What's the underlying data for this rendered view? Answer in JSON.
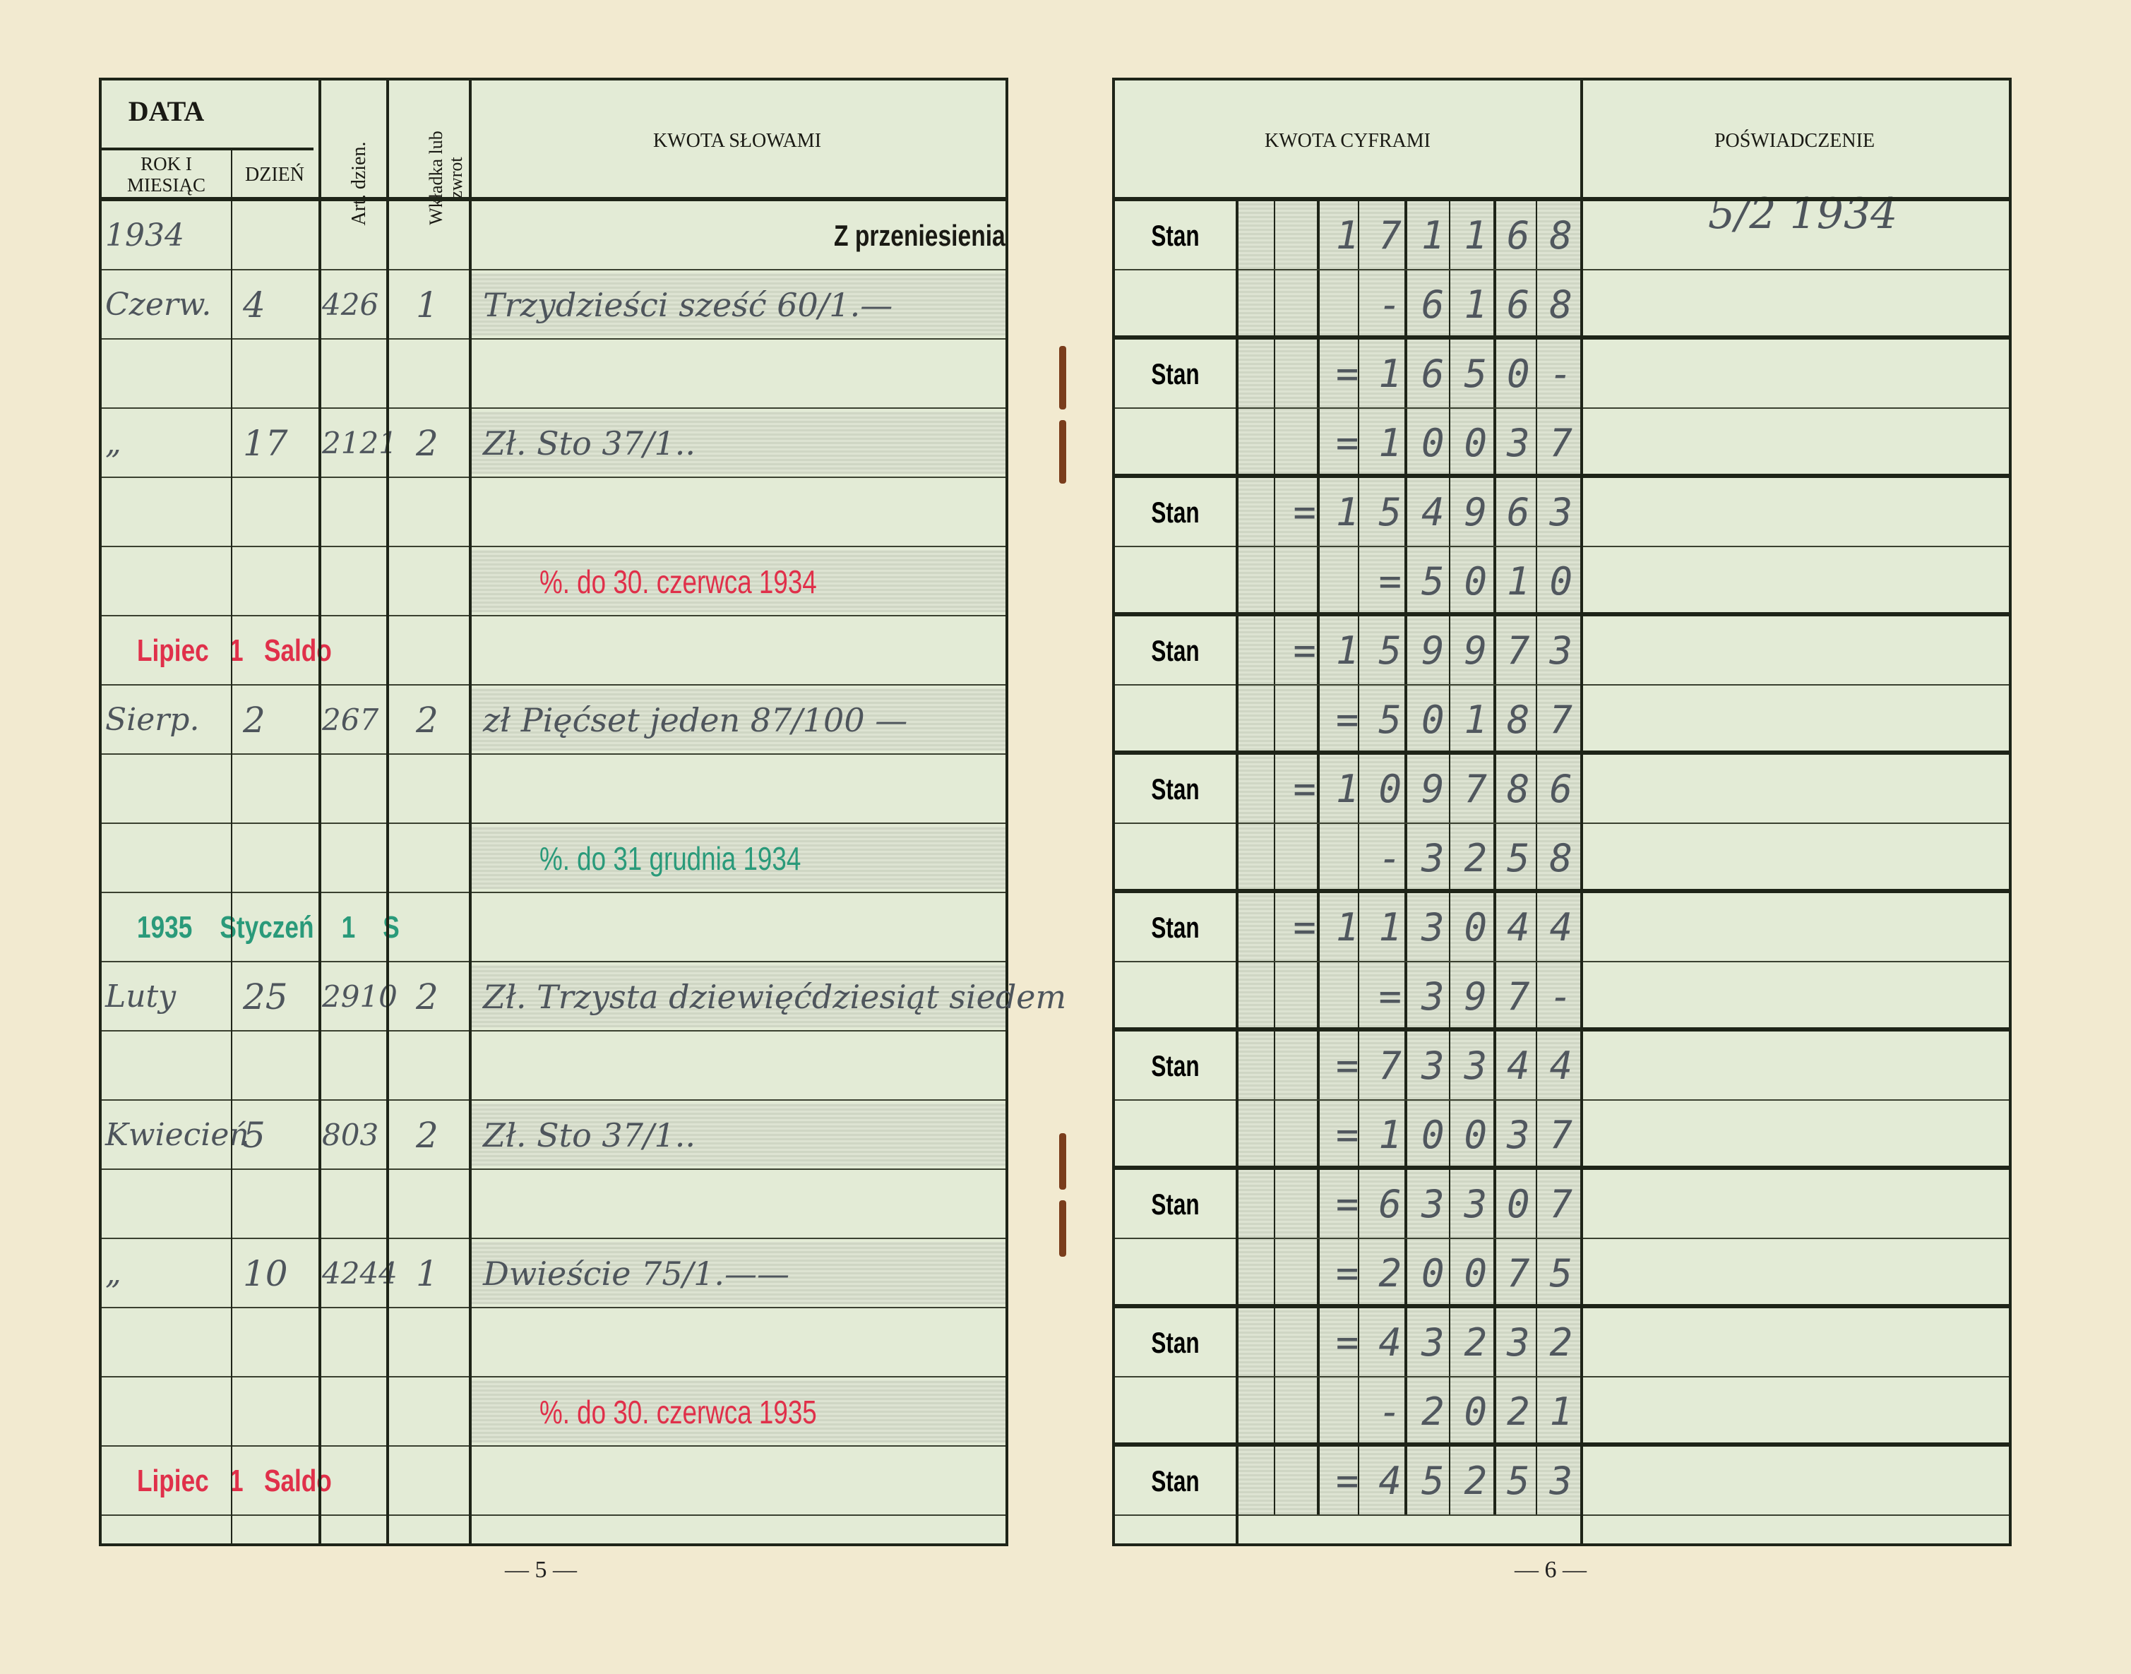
{
  "left_page": {
    "headers": {
      "data": "DATA",
      "rok_miesiac": "ROK I MIESIĄC",
      "dzien": "DZIEŃ",
      "art_dzien": "Art. dzien.",
      "wkladka": "Wkładka lub zwrot",
      "kwota_slowami": "KWOTA SŁOWAMI"
    },
    "rows": [
      {
        "month": "1934",
        "day": "",
        "art": "",
        "type": "",
        "words": "",
        "print": "Z przeniesienia"
      },
      {
        "month": "Czerw.",
        "day": "4",
        "art": "426",
        "type": "1",
        "words": "Trzydzieści sześć 60/1.—"
      },
      {
        "month": "",
        "day": "",
        "art": "",
        "type": "",
        "words": ""
      },
      {
        "month": "„",
        "day": "17",
        "art": "2121",
        "type": "2",
        "words": "Zł. Sto 37/1.."
      },
      {
        "month": "",
        "day": "",
        "art": "",
        "type": "",
        "words": ""
      },
      {
        "stamp": "%. do 30. czerwca 1934",
        "stamp_color": "#e0304a"
      },
      {
        "stamp_date": "Lipiec   1   Saldo",
        "stamp_color": "#e0304a"
      },
      {
        "month": "Sierp.",
        "day": "2",
        "art": "267",
        "type": "2",
        "words": "zł Pięćset jeden 87/100 —"
      },
      {
        "month": "",
        "day": "",
        "art": "",
        "type": "",
        "words": ""
      },
      {
        "stamp": "%. do 31 grudnia 1934",
        "stamp_color": "#2a9a7a"
      },
      {
        "stamp_date": "1935    Styczeń    1    S",
        "stamp_color": "#2a9a7a"
      },
      {
        "month": "Luty",
        "day": "25",
        "art": "2910",
        "type": "2",
        "words": "Zł. Trzysta dziewięćdziesiąt siedem"
      },
      {
        "month": "",
        "day": "",
        "art": "",
        "type": "",
        "words": ""
      },
      {
        "month": "Kwiecień",
        "day": "5",
        "art": "803",
        "type": "2",
        "words": "Zł. Sto 37/1.."
      },
      {
        "month": "",
        "day": "",
        "art": "",
        "type": "",
        "words": ""
      },
      {
        "month": "„",
        "day": "10",
        "art": "4244",
        "type": "1",
        "words": "Dwieście 75/1.——"
      },
      {
        "month": "",
        "day": "",
        "art": "",
        "type": "",
        "words": ""
      },
      {
        "stamp": "%. do 30. czerwca 1935",
        "stamp_color": "#e0304a"
      },
      {
        "stamp_date": "Lipiec   1   Saldo",
        "stamp_color": "#e0304a"
      }
    ],
    "page_number": "— 5 —"
  },
  "right_page": {
    "headers": {
      "kwota_cyframi": "KWOTA CYFRAMI",
      "poswiadczenie": "POŚWIADCZENIE"
    },
    "stan_label": "Stan",
    "attestation_date": "5/2 1934",
    "rows": [
      {
        "stan": true,
        "amount": "171168"
      },
      {
        "stan": false,
        "amount": "-6168"
      },
      {
        "stan": true,
        "amount": "=1650-"
      },
      {
        "stan": false,
        "amount": "=10037"
      },
      {
        "stan": true,
        "amount": "=154963"
      },
      {
        "stan": false,
        "amount": "=5010"
      },
      {
        "stan": true,
        "amount": "=159973"
      },
      {
        "stan": false,
        "amount": "=50187"
      },
      {
        "stan": true,
        "amount": "=109786"
      },
      {
        "stan": false,
        "amount": "-3258"
      },
      {
        "stan": true,
        "amount": "=113044"
      },
      {
        "stan": false,
        "amount": "=397-"
      },
      {
        "stan": true,
        "amount": "=73344"
      },
      {
        "stan": false,
        "amount": "=10037"
      },
      {
        "stan": true,
        "amount": "=63307"
      },
      {
        "stan": false,
        "amount": "=20075"
      },
      {
        "stan": true,
        "amount": "=43232"
      },
      {
        "stan": false,
        "amount": "-2021"
      },
      {
        "stan": true,
        "amount": "=45253"
      }
    ],
    "page_number": "— 6 —"
  }
}
